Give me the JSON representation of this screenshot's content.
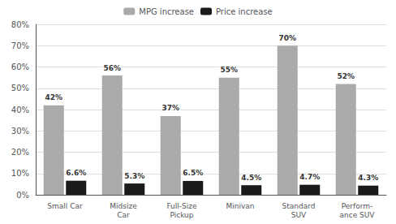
{
  "chart_data": {
    "type": "bar",
    "categories": [
      "Small Car",
      "Midsize\nCar",
      "Full-Size\nPickup",
      "Minivan",
      "Standard\nSUV",
      "Perform-\nance SUV"
    ],
    "series": [
      {
        "name": "MPG increase",
        "color": "#aaaaaa",
        "values": [
          42,
          56,
          37,
          55,
          70,
          52
        ],
        "value_labels": [
          "42%",
          "56%",
          "37%",
          "55%",
          "70%",
          "52%"
        ]
      },
      {
        "name": "Price increase",
        "color": "#1a1a1a",
        "values": [
          6.6,
          5.3,
          6.5,
          4.5,
          4.7,
          4.3
        ],
        "value_labels": [
          "6.6%",
          "5.3%",
          "6.5%",
          "4.5%",
          "4.7%",
          "4.3%"
        ]
      }
    ],
    "ylim": [
      0,
      80
    ],
    "yticks": [
      {
        "value": 0,
        "label": "0%"
      },
      {
        "value": 10,
        "label": "10%"
      },
      {
        "value": 20,
        "label": "20%"
      },
      {
        "value": 30,
        "label": "30%"
      },
      {
        "value": 40,
        "label": "40%"
      },
      {
        "value": 50,
        "label": "50%"
      },
      {
        "value": 60,
        "label": "60%"
      },
      {
        "value": 70,
        "label": "70%"
      },
      {
        "value": 80,
        "label": "80%"
      }
    ],
    "grid": true,
    "legend": "top",
    "data_labels": true
  }
}
